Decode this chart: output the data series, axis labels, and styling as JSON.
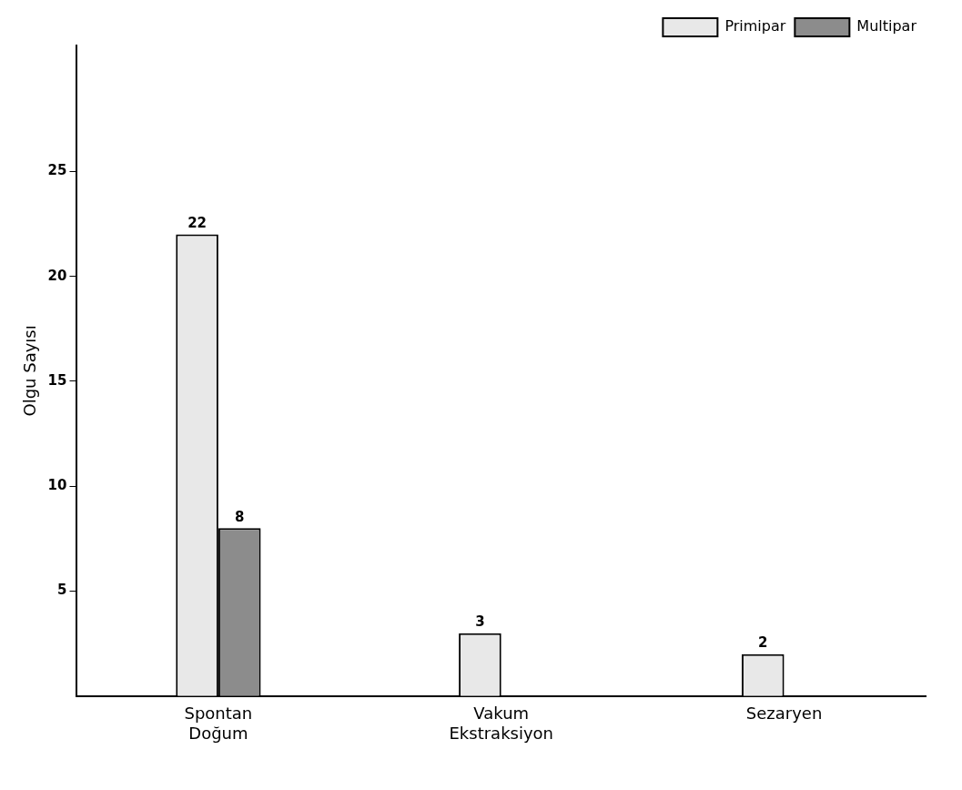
{
  "chart_data": {
    "type": "bar",
    "ylabel": "Olgu Sayısı",
    "categories": [
      "Spontan Doğum",
      "Vakum Ekstraksiyon",
      "Sezaryen"
    ],
    "series": [
      {
        "name": "Primipar",
        "color": "#e8e8e8",
        "values": [
          22,
          3,
          2
        ]
      },
      {
        "name": "Multipar",
        "color": "#8c8c8c",
        "values": [
          8,
          null,
          null
        ]
      }
    ],
    "ylim": [
      0,
      31
    ],
    "yticks": [
      5,
      10,
      15,
      20,
      25
    ],
    "grid": false,
    "legend": "top right",
    "data_labels": true
  }
}
